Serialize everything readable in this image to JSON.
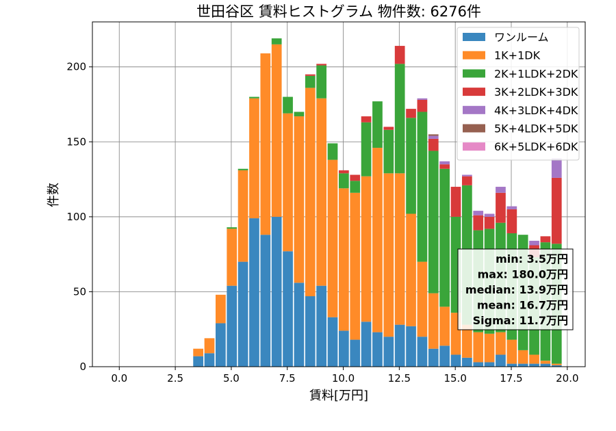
{
  "chart_data": {
    "type": "bar",
    "stacked": true,
    "title": "世田谷区 賃料ヒストグラム  物件数: 6276件",
    "xlabel": "賃料[万円]",
    "ylabel": "件数",
    "xlim": [
      -1.2,
      20.8
    ],
    "ylim": [
      0,
      230
    ],
    "xticks": [
      0.0,
      2.5,
      5.0,
      7.5,
      10.0,
      12.5,
      15.0,
      17.5,
      20.0
    ],
    "xtick_labels": [
      "0.0",
      "2.5",
      "5.0",
      "7.5",
      "10.0",
      "12.5",
      "15.0",
      "17.5",
      "20.0"
    ],
    "yticks": [
      0,
      50,
      100,
      150,
      200
    ],
    "ytick_labels": [
      "0",
      "50",
      "100",
      "150",
      "200"
    ],
    "grid": true,
    "legend_position": "top-right",
    "bin_start": 3.3,
    "bin_width": 0.5,
    "bar_width_fraction": 0.9,
    "series": [
      {
        "name": "ワンルーム",
        "color": "#3a87bf",
        "values": [
          7,
          9,
          29,
          54,
          70,
          99,
          88,
          100,
          77,
          56,
          47,
          54,
          33,
          24,
          18,
          30,
          23,
          20,
          28,
          27,
          20,
          12,
          14,
          8,
          6,
          3,
          3,
          8,
          2,
          2,
          2,
          2,
          1
        ]
      },
      {
        "name": "1K+1DK",
        "color": "#ff8b28",
        "values": [
          5,
          10,
          19,
          38,
          61,
          80,
          121,
          115,
          92,
          111,
          139,
          125,
          105,
          95,
          98,
          97,
          123,
          109,
          101,
          75,
          50,
          37,
          26,
          28,
          22,
          20,
          19,
          15,
          16,
          9,
          6,
          2,
          1
        ]
      },
      {
        "name": "2K+1LDK+2DK",
        "color": "#3aa53a",
        "values": [
          0,
          0,
          0,
          1,
          1,
          1,
          0,
          4,
          11,
          3,
          8,
          22,
          11,
          10,
          8,
          36,
          31,
          29,
          73,
          64,
          100,
          95,
          92,
          64,
          93,
          68,
          70,
          73,
          71,
          77,
          65,
          79,
          80
        ]
      },
      {
        "name": "3K+2LDK+3DK",
        "color": "#d83a3a",
        "values": [
          0,
          0,
          0,
          0,
          0,
          0,
          0,
          0,
          0,
          0,
          1,
          1,
          0,
          2,
          4,
          4,
          0,
          2,
          12,
          6,
          8,
          8,
          3,
          20,
          6,
          10,
          8,
          20,
          16,
          0,
          8,
          4,
          44
        ]
      },
      {
        "name": "4K+3LDK+4DK",
        "color": "#a477c6",
        "values": [
          0,
          0,
          0,
          0,
          0,
          0,
          0,
          0,
          0,
          0,
          0,
          0,
          0,
          0,
          0,
          0,
          0,
          0,
          0,
          0,
          1,
          2,
          2,
          0,
          1,
          3,
          2,
          4,
          2,
          0,
          3,
          0,
          13
        ]
      },
      {
        "name": "5K+4LDK+5DK",
        "color": "#966050",
        "values": [
          0,
          0,
          0,
          0,
          0,
          0,
          0,
          0,
          0,
          0,
          0,
          0,
          0,
          0,
          0,
          0,
          0,
          0,
          0,
          0,
          0,
          1,
          0,
          0,
          0,
          0,
          0,
          0,
          0,
          0,
          0,
          0,
          0
        ]
      },
      {
        "name": "6K+5LDK+6DK",
        "color": "#e589c6",
        "values": [
          0,
          0,
          0,
          0,
          0,
          0,
          0,
          0,
          0,
          0,
          0,
          0,
          0,
          0,
          0,
          0,
          0,
          0,
          0,
          0,
          0,
          0,
          0,
          0,
          0,
          0,
          0,
          0,
          0,
          0,
          0,
          0,
          0
        ]
      }
    ],
    "stats_box": [
      "min: 3.5万円",
      "max: 180.0万円",
      "median: 13.9万円",
      "mean: 16.7万円",
      "Sigma: 11.7万円"
    ]
  }
}
